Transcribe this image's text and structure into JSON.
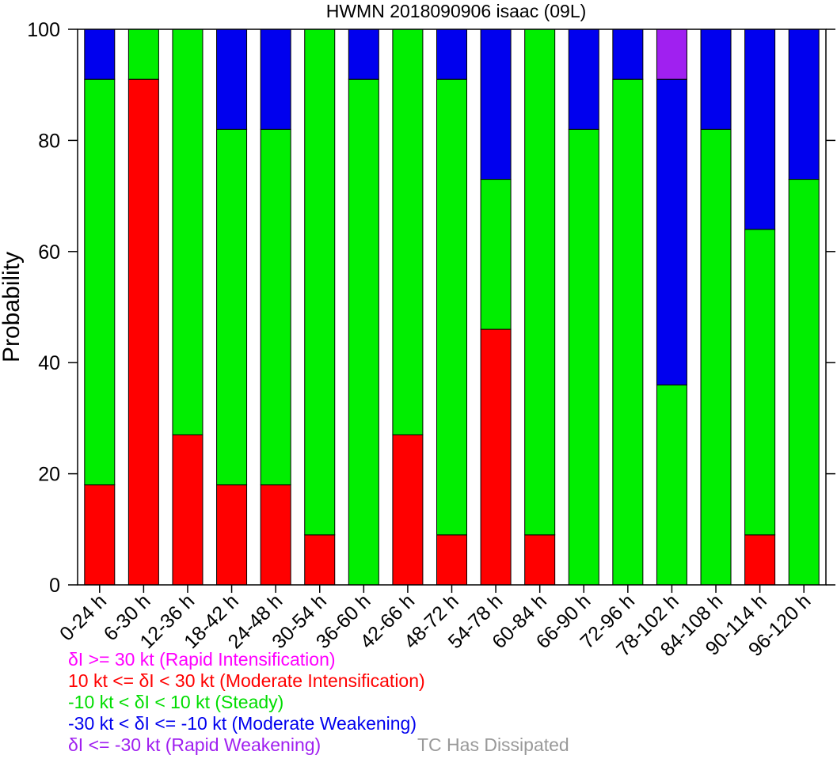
{
  "chart_data": {
    "type": "bar",
    "stacked": true,
    "title": "HWMN 2018090906 isaac (09L)",
    "ylabel": "Probability",
    "xlabel": "",
    "ylim": [
      0,
      100
    ],
    "yticks": [
      0,
      20,
      40,
      60,
      80,
      100
    ],
    "grid": false,
    "categories": [
      "0-24 h",
      "6-30 h",
      "12-36 h",
      "18-42 h",
      "24-48 h",
      "30-54 h",
      "36-60 h",
      "42-66 h",
      "48-72 h",
      "54-78 h",
      "60-84 h",
      "66-90 h",
      "72-96 h",
      "78-102 h",
      "84-108 h",
      "90-114 h",
      "96-120 h"
    ],
    "series": [
      {
        "name": "10 kt <= δI < 30 kt (Moderate Intensification)",
        "color": "#ff0000",
        "values": [
          18,
          91,
          27,
          18,
          18,
          9,
          0,
          27,
          9,
          46,
          9,
          0,
          0,
          0,
          0,
          9,
          0
        ]
      },
      {
        "name": "-10 kt < δI < 10 kt (Steady)",
        "color": "#00ee00",
        "values": [
          73,
          9,
          73,
          64,
          64,
          91,
          91,
          73,
          82,
          27,
          91,
          82,
          91,
          36,
          82,
          55,
          73
        ]
      },
      {
        "name": "-30 kt < δI <= -10 kt (Moderate Weakening)",
        "color": "#0000ee",
        "values": [
          9,
          0,
          0,
          18,
          18,
          0,
          9,
          0,
          9,
          27,
          0,
          18,
          9,
          55,
          18,
          36,
          27
        ]
      },
      {
        "name": "δI <= -30 kt (Rapid Weakening)",
        "color": "#a020f0",
        "values": [
          0,
          0,
          0,
          0,
          0,
          0,
          0,
          0,
          0,
          0,
          0,
          0,
          0,
          9,
          0,
          0,
          0
        ]
      }
    ],
    "legend": {
      "placement": "bottom",
      "entries": [
        {
          "text": "δI >= 30 kt (Rapid Intensification)",
          "color": "#ff00ff"
        },
        {
          "text": "10 kt <= δI < 30 kt (Moderate Intensification)",
          "color": "#ff0000"
        },
        {
          "text": "-10 kt < δI < 10 kt (Steady)",
          "color": "#00dd00"
        },
        {
          "text": "-30 kt < δI <= -10 kt (Moderate Weakening)",
          "color": "#0000ee"
        },
        {
          "text": "δI <= -30 kt (Rapid Weakening)",
          "color": "#a020f0"
        }
      ],
      "note": {
        "text": "TC Has Dissipated",
        "color": "#999999"
      }
    }
  }
}
